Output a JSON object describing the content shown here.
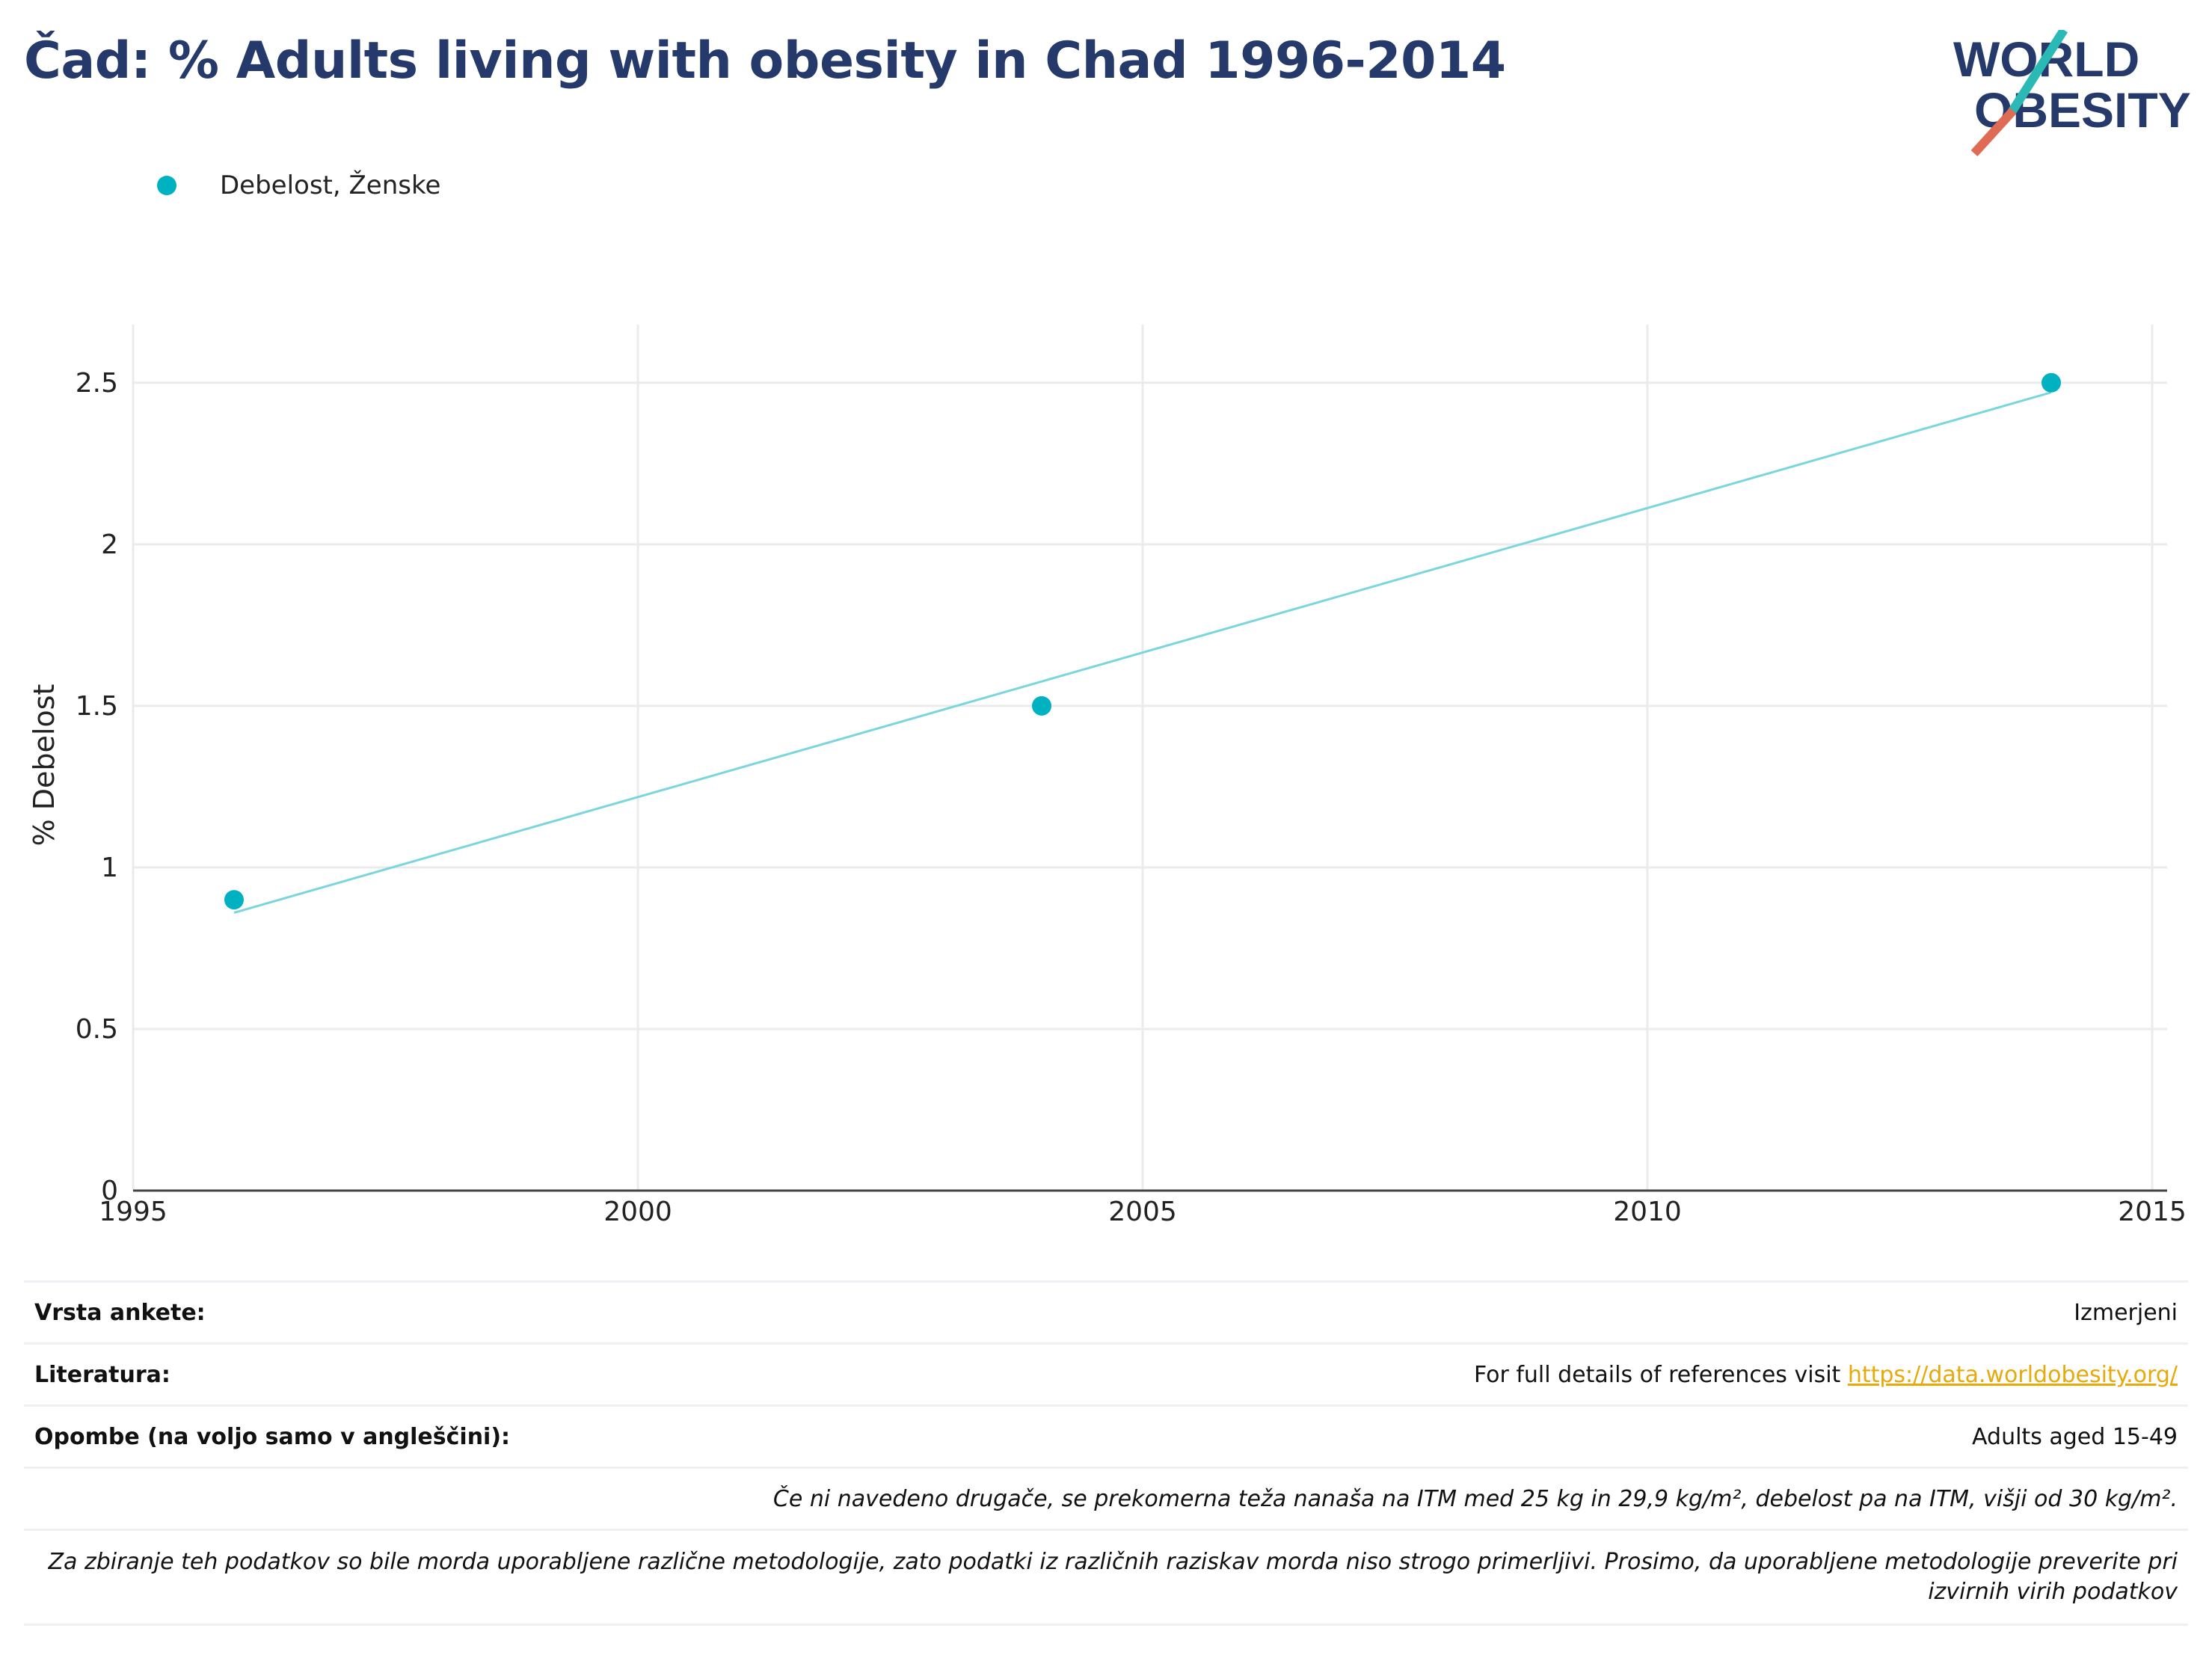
{
  "title": "Čad: % Adults living with obesity in Chad 1996-2014",
  "logo": {
    "line1": "WORLD",
    "line2": "OBESITY"
  },
  "legend": {
    "label": "Debelost, Ženske"
  },
  "colors": {
    "series": "#00b2c1",
    "trend": "#7ad6dd",
    "title": "#253a6b",
    "link": "#e8a90a",
    "logo_slash_top": "#2ab9b5",
    "logo_slash_bottom": "#e06b55"
  },
  "chart_data": {
    "type": "scatter",
    "xlabel": "",
    "ylabel": "% Debelost",
    "xlim": [
      1995,
      2015
    ],
    "ylim": [
      0,
      2.68
    ],
    "xticks": [
      1995,
      2000,
      2005,
      2010,
      2015
    ],
    "yticks": [
      0,
      0.5,
      1,
      1.5,
      2,
      2.5
    ],
    "ytick_labels": [
      "0",
      "0.5",
      "1",
      "1.5",
      "2",
      "2.5"
    ],
    "grid": true,
    "legend_position": "top-left",
    "series": [
      {
        "name": "Debelost, Ženske",
        "x": [
          1996,
          2004,
          2014
        ],
        "y": [
          0.9,
          1.5,
          2.5
        ]
      }
    ],
    "trendline": {
      "x": [
        1996,
        2014
      ],
      "y": [
        0.86,
        2.47
      ]
    }
  },
  "info": {
    "survey_label": "Vrsta ankete:",
    "survey_value": "Izmerjeni",
    "refs_label": "Literatura:",
    "refs_text": "For full details of references visit ",
    "refs_link": "https://data.worldobesity.org/",
    "notes_label": "Opombe (na voljo samo v angleščini):",
    "notes_value": "Adults aged 15-49",
    "note1": "Če ni navedeno drugače, se prekomerna teža nanaša na ITM med 25 kg in 29,9 kg/m², debelost pa na ITM, višji od 30 kg/m².",
    "note2": "Za zbiranje teh podatkov so bile morda uporabljene različne metodologije, zato podatki iz različnih raziskav morda niso strogo primerljivi. Prosimo, da uporabljene metodologije preverite pri izvirnih virih podatkov"
  }
}
